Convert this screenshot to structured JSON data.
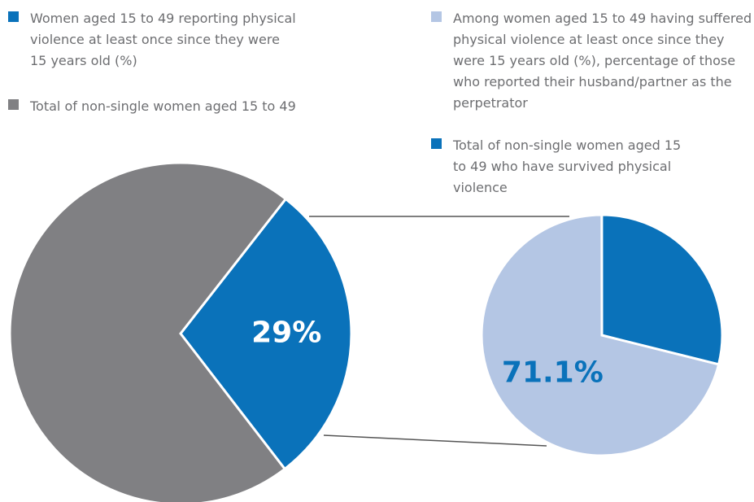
{
  "chart_data": [
    {
      "type": "pie",
      "categories": [
        "Women aged 15 to 49 reporting physical violence at least once since they were 15 years old (%)",
        "Total of non-single women aged 15 to 49"
      ],
      "values": [
        29,
        71
      ],
      "value_labels": [
        "29%",
        null
      ],
      "colors": [
        "#0a72ba",
        "#808083"
      ]
    },
    {
      "type": "pie",
      "categories": [
        "Among women aged 15 to 49 having suffered physical violence at least once since they were 15 years old (%), percentage of those who reported their husband/partner as the perpetrator",
        "Total of non-single women aged 15 to 49 who have survived physical violence"
      ],
      "values": [
        71.1,
        28.9
      ],
      "value_labels": [
        "71.1%",
        null
      ],
      "colors": [
        "#b4c6e4",
        "#0a72ba"
      ]
    }
  ]
}
